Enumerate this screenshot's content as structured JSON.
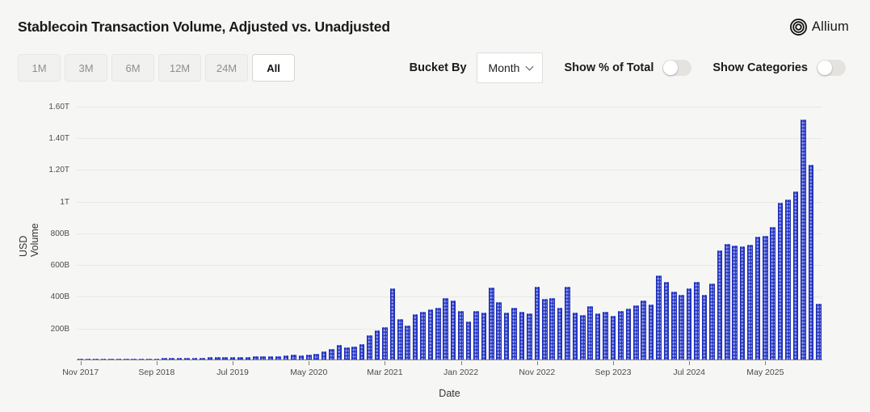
{
  "header": {
    "title": "Stablecoin Transaction Volume, Adjusted vs. Unadjusted",
    "logo_text": "Allium"
  },
  "toolbar": {
    "range_buttons": [
      {
        "label": "1M",
        "selected": false
      },
      {
        "label": "3M",
        "selected": false
      },
      {
        "label": "6M",
        "selected": false
      },
      {
        "label": "12M",
        "selected": false
      },
      {
        "label": "24M",
        "selected": false
      },
      {
        "label": "All",
        "selected": true
      }
    ],
    "bucket_by": {
      "label": "Bucket By",
      "value": "Month"
    },
    "toggles": [
      {
        "label": "Show % of Total",
        "on": false
      },
      {
        "label": "Show Categories",
        "on": false
      }
    ]
  },
  "chart_data": {
    "type": "bar",
    "title": "Stablecoin Transaction Volume, Adjusted vs. Unadjusted",
    "xlabel": "Date",
    "ylabel": "USD Volume",
    "unit": "USD billions",
    "ylim": [
      0,
      1600
    ],
    "grid": "horizontal",
    "bar_color": "#2335c5",
    "bar_pattern": "light-dots",
    "x": [
      "2017-11",
      "2017-12",
      "2018-01",
      "2018-02",
      "2018-03",
      "2018-04",
      "2018-05",
      "2018-06",
      "2018-07",
      "2018-08",
      "2018-09",
      "2018-10",
      "2018-11",
      "2018-12",
      "2019-01",
      "2019-02",
      "2019-03",
      "2019-04",
      "2019-05",
      "2019-06",
      "2019-07",
      "2019-08",
      "2019-09",
      "2019-10",
      "2019-11",
      "2019-12",
      "2020-01",
      "2020-02",
      "2020-03",
      "2020-04",
      "2020-05",
      "2020-06",
      "2020-07",
      "2020-08",
      "2020-09",
      "2020-10",
      "2020-11",
      "2020-12",
      "2021-01",
      "2021-02",
      "2021-03",
      "2021-04",
      "2021-05",
      "2021-06",
      "2021-07",
      "2021-08",
      "2021-09",
      "2021-10",
      "2021-11",
      "2021-12",
      "2022-01",
      "2022-02",
      "2022-03",
      "2022-04",
      "2022-05",
      "2022-06",
      "2022-07",
      "2022-08",
      "2022-09",
      "2022-10",
      "2022-11",
      "2022-12",
      "2023-01",
      "2023-02",
      "2023-03",
      "2023-04",
      "2023-05",
      "2023-06",
      "2023-07",
      "2023-08",
      "2023-09",
      "2023-10",
      "2023-11",
      "2023-12",
      "2024-01",
      "2024-02",
      "2024-03",
      "2024-04",
      "2024-05",
      "2024-06",
      "2024-07",
      "2024-08",
      "2024-09",
      "2024-10",
      "2024-11",
      "2024-12",
      "2025-01",
      "2025-02",
      "2025-03",
      "2025-04",
      "2025-05",
      "2025-06",
      "2025-07",
      "2025-08",
      "2025-09",
      "2025-10",
      "2025-11",
      "2025-12"
    ],
    "values": [
      4,
      7,
      6,
      5,
      5,
      4,
      5,
      5,
      5,
      6,
      7,
      8,
      9,
      8,
      8,
      9,
      11,
      13,
      15,
      16,
      15,
      16,
      17,
      18,
      19,
      20,
      22,
      24,
      30,
      26,
      29,
      36,
      52,
      66,
      94,
      74,
      80,
      98,
      153,
      183,
      205,
      446,
      255,
      216,
      285,
      299,
      315,
      325,
      385,
      373,
      305,
      239,
      307,
      295,
      455,
      363,
      293,
      324,
      300,
      288,
      458,
      382,
      388,
      327,
      460,
      297,
      281,
      334,
      290,
      301,
      274,
      307,
      321,
      340,
      373,
      345,
      531,
      489,
      429,
      407,
      446,
      489,
      407,
      480,
      689,
      730,
      718,
      713,
      723,
      774,
      781,
      836,
      989,
      1010,
      1057,
      1510,
      1226,
      353
    ],
    "x_tick_every": 10,
    "x_tick_labels": [
      "Nov 2017",
      "Sep 2018",
      "Jul 2019",
      "May 2020",
      "Mar 2021",
      "Jan 2022",
      "Nov 2022",
      "Sep 2023",
      "Jul 2024",
      "May 2025"
    ],
    "y_ticks": [
      {
        "value": 200,
        "label": "200B"
      },
      {
        "value": 400,
        "label": "400B"
      },
      {
        "value": 600,
        "label": "600B"
      },
      {
        "value": 800,
        "label": "800B"
      },
      {
        "value": 1000,
        "label": "1T"
      },
      {
        "value": 1200,
        "label": "1.20T"
      },
      {
        "value": 1400,
        "label": "1.40T"
      },
      {
        "value": 1600,
        "label": "1.60T"
      }
    ]
  },
  "colors": {
    "background": "#f6f6f5",
    "bar": "#2335c5",
    "bar_dot": "#9aa6e8",
    "gridline": "#e8e8e6",
    "axis": "#7f7f7f",
    "text_primary": "#1b1b1b",
    "text_muted": "#8f8f8f"
  }
}
